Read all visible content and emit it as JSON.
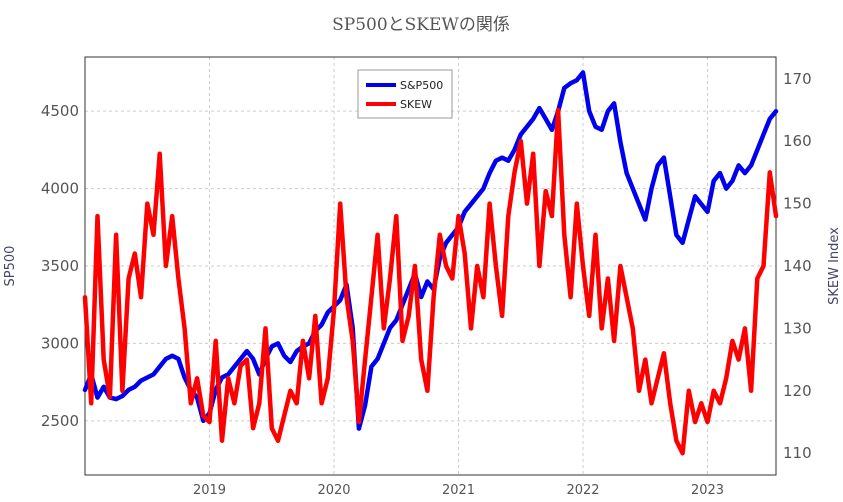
{
  "chart_data": {
    "type": "line",
    "title": "SP500とSKEWの関係",
    "y_left_label": "SP500",
    "y_right_label": "SKEW Index",
    "x_ticks": [
      "2019",
      "2020",
      "2021",
      "2022",
      "2023"
    ],
    "y_left_ticks": [
      2500,
      3000,
      3500,
      4000,
      4500
    ],
    "y_right_ticks": [
      110,
      120,
      130,
      140,
      150,
      160,
      170
    ],
    "xlim": [
      2018.0,
      2023.55
    ],
    "ylim_left": [
      2150,
      4850
    ],
    "ylim_right": [
      106.5,
      173.5
    ],
    "grid": true,
    "legend_position": "top-center",
    "series": [
      {
        "name": "S&P500",
        "axis": "left",
        "color": "#0000ee",
        "x": [
          2018.0,
          2018.05,
          2018.1,
          2018.15,
          2018.2,
          2018.25,
          2018.3,
          2018.35,
          2018.4,
          2018.45,
          2018.5,
          2018.55,
          2018.6,
          2018.65,
          2018.7,
          2018.75,
          2018.8,
          2018.85,
          2018.9,
          2018.95,
          2019.0,
          2019.05,
          2019.1,
          2019.15,
          2019.2,
          2019.25,
          2019.3,
          2019.35,
          2019.4,
          2019.45,
          2019.5,
          2019.55,
          2019.6,
          2019.65,
          2019.7,
          2019.75,
          2019.8,
          2019.85,
          2019.9,
          2019.95,
          2020.0,
          2020.05,
          2020.1,
          2020.15,
          2020.2,
          2020.25,
          2020.3,
          2020.35,
          2020.4,
          2020.45,
          2020.5,
          2020.55,
          2020.6,
          2020.65,
          2020.7,
          2020.75,
          2020.8,
          2020.85,
          2020.9,
          2020.95,
          2021.0,
          2021.05,
          2021.1,
          2021.15,
          2021.2,
          2021.25,
          2021.3,
          2021.35,
          2021.4,
          2021.45,
          2021.5,
          2021.55,
          2021.6,
          2021.65,
          2021.7,
          2021.75,
          2021.8,
          2021.85,
          2021.9,
          2021.95,
          2022.0,
          2022.05,
          2022.1,
          2022.15,
          2022.2,
          2022.25,
          2022.3,
          2022.35,
          2022.4,
          2022.45,
          2022.5,
          2022.55,
          2022.6,
          2022.65,
          2022.7,
          2022.75,
          2022.8,
          2022.85,
          2022.9,
          2022.95,
          2023.0,
          2023.05,
          2023.1,
          2023.15,
          2023.2,
          2023.25,
          2023.3,
          2023.35,
          2023.4,
          2023.45,
          2023.5,
          2023.55
        ],
        "values": [
          2700,
          2800,
          2650,
          2720,
          2650,
          2640,
          2660,
          2700,
          2720,
          2760,
          2780,
          2800,
          2850,
          2900,
          2920,
          2900,
          2780,
          2700,
          2650,
          2500,
          2550,
          2700,
          2780,
          2800,
          2850,
          2900,
          2950,
          2900,
          2800,
          2900,
          2980,
          3000,
          2920,
          2880,
          2950,
          2980,
          3000,
          3080,
          3120,
          3200,
          3240,
          3280,
          3380,
          3100,
          2450,
          2600,
          2850,
          2900,
          3000,
          3100,
          3150,
          3250,
          3350,
          3450,
          3300,
          3400,
          3350,
          3550,
          3650,
          3700,
          3750,
          3850,
          3900,
          3950,
          4000,
          4100,
          4180,
          4200,
          4180,
          4250,
          4350,
          4400,
          4450,
          4520,
          4450,
          4380,
          4500,
          4650,
          4680,
          4700,
          4750,
          4500,
          4400,
          4380,
          4500,
          4550,
          4300,
          4100,
          4000,
          3900,
          3800,
          4000,
          4150,
          4200,
          3950,
          3700,
          3650,
          3800,
          3950,
          3900,
          3850,
          4050,
          4100,
          4000,
          4050,
          4150,
          4100,
          4150,
          4250,
          4350,
          4450,
          4500
        ]
      },
      {
        "name": "SKEW",
        "axis": "right",
        "color": "#ff0000",
        "x": [
          2018.0,
          2018.05,
          2018.1,
          2018.15,
          2018.2,
          2018.25,
          2018.3,
          2018.35,
          2018.4,
          2018.45,
          2018.5,
          2018.55,
          2018.6,
          2018.65,
          2018.7,
          2018.75,
          2018.8,
          2018.85,
          2018.9,
          2018.95,
          2019.0,
          2019.05,
          2019.1,
          2019.15,
          2019.2,
          2019.25,
          2019.3,
          2019.35,
          2019.4,
          2019.45,
          2019.5,
          2019.55,
          2019.6,
          2019.65,
          2019.7,
          2019.75,
          2019.8,
          2019.85,
          2019.9,
          2019.95,
          2020.0,
          2020.05,
          2020.1,
          2020.15,
          2020.2,
          2020.25,
          2020.3,
          2020.35,
          2020.4,
          2020.45,
          2020.5,
          2020.55,
          2020.6,
          2020.65,
          2020.7,
          2020.75,
          2020.8,
          2020.85,
          2020.9,
          2020.95,
          2021.0,
          2021.05,
          2021.1,
          2021.15,
          2021.2,
          2021.25,
          2021.3,
          2021.35,
          2021.4,
          2021.45,
          2021.5,
          2021.55,
          2021.6,
          2021.65,
          2021.7,
          2021.75,
          2021.8,
          2021.85,
          2021.9,
          2021.95,
          2022.0,
          2022.05,
          2022.1,
          2022.15,
          2022.2,
          2022.25,
          2022.3,
          2022.35,
          2022.4,
          2022.45,
          2022.5,
          2022.55,
          2022.6,
          2022.65,
          2022.7,
          2022.75,
          2022.8,
          2022.85,
          2022.9,
          2022.95,
          2023.0,
          2023.05,
          2023.1,
          2023.15,
          2023.2,
          2023.25,
          2023.3,
          2023.35,
          2023.4,
          2023.45,
          2023.5,
          2023.55
        ],
        "values": [
          135,
          118,
          148,
          125,
          119,
          145,
          120,
          138,
          142,
          135,
          150,
          145,
          158,
          140,
          148,
          138,
          130,
          118,
          122,
          116,
          115,
          128,
          112,
          122,
          118,
          124,
          125,
          114,
          118,
          130,
          114,
          112,
          116,
          120,
          118,
          128,
          122,
          132,
          118,
          122,
          133,
          150,
          135,
          128,
          115,
          125,
          135,
          145,
          130,
          138,
          148,
          128,
          132,
          140,
          125,
          120,
          135,
          145,
          140,
          138,
          148,
          142,
          130,
          140,
          135,
          150,
          140,
          132,
          148,
          155,
          160,
          150,
          158,
          140,
          152,
          148,
          165,
          145,
          135,
          150,
          140,
          132,
          145,
          130,
          138,
          128,
          140,
          135,
          130,
          120,
          125,
          118,
          122,
          126,
          118,
          112,
          110,
          120,
          115,
          118,
          115,
          120,
          118,
          122,
          128,
          125,
          130,
          120,
          138,
          140,
          155,
          148
        ]
      }
    ]
  }
}
